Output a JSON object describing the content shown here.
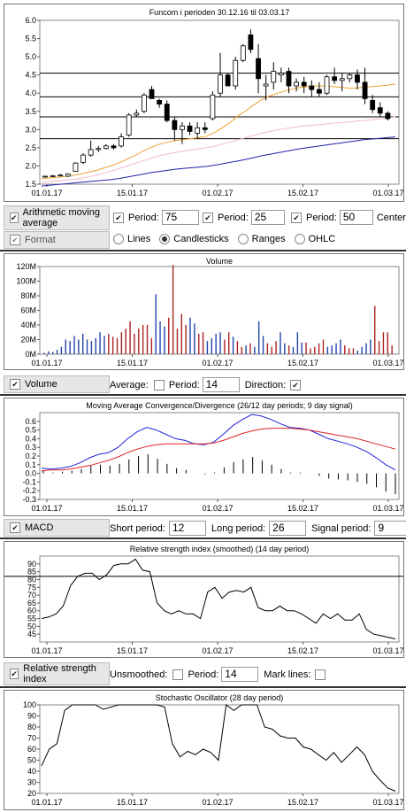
{
  "chart_data": [
    {
      "type": "candlestick",
      "title": "Funcom i perioden 30.12.16 til 03.03.17",
      "x_ticks": [
        "01.01.17",
        "15.01.17",
        "01.02.17",
        "15.02.17",
        "01.03.17"
      ],
      "ylim": [
        1.5,
        6.0
      ],
      "y_ticks": [
        "1.5",
        "2.0",
        "2.5",
        "3.0",
        "3.5",
        "4.0",
        "4.5",
        "5.0",
        "5.5",
        "6.0"
      ],
      "candles": [
        [
          1.7,
          1.72,
          1.68,
          1.72
        ],
        [
          1.72,
          1.75,
          1.7,
          1.73
        ],
        [
          1.73,
          1.78,
          1.72,
          1.75
        ],
        [
          1.72,
          1.8,
          1.7,
          1.78
        ],
        [
          1.85,
          2.1,
          1.84,
          2.08
        ],
        [
          2.1,
          2.35,
          2.05,
          2.3
        ],
        [
          2.3,
          2.7,
          2.25,
          2.45
        ],
        [
          2.45,
          2.55,
          2.38,
          2.48
        ],
        [
          2.48,
          2.6,
          2.45,
          2.55
        ],
        [
          2.55,
          2.6,
          2.45,
          2.5
        ],
        [
          2.55,
          2.9,
          2.5,
          2.8
        ],
        [
          2.85,
          3.45,
          2.8,
          3.4
        ],
        [
          3.4,
          3.55,
          3.35,
          3.45
        ],
        [
          3.5,
          4.0,
          3.45,
          3.95
        ],
        [
          4.1,
          4.2,
          3.85,
          3.85
        ],
        [
          3.8,
          3.85,
          3.6,
          3.7
        ],
        [
          3.7,
          3.8,
          3.2,
          3.25
        ],
        [
          3.25,
          3.35,
          2.7,
          3.0
        ],
        [
          3.0,
          3.2,
          2.6,
          3.1
        ],
        [
          3.1,
          3.2,
          2.85,
          2.95
        ],
        [
          2.9,
          3.2,
          2.75,
          3.05
        ],
        [
          3.05,
          3.2,
          2.9,
          3.0
        ],
        [
          3.3,
          4.05,
          3.25,
          3.95
        ],
        [
          4.0,
          5.1,
          3.9,
          4.5
        ],
        [
          4.5,
          4.55,
          4.2,
          4.2
        ],
        [
          4.2,
          5.0,
          4.1,
          4.9
        ],
        [
          4.9,
          5.35,
          4.85,
          5.3
        ],
        [
          5.6,
          5.75,
          5.1,
          5.2
        ],
        [
          4.95,
          5.35,
          4.0,
          4.4
        ],
        [
          4.2,
          4.5,
          3.8,
          4.25
        ],
        [
          4.3,
          4.85,
          4.1,
          4.6
        ],
        [
          4.5,
          4.7,
          4.3,
          4.55
        ],
        [
          4.6,
          4.7,
          4.0,
          4.2
        ],
        [
          4.2,
          4.4,
          4.05,
          4.3
        ],
        [
          4.3,
          4.45,
          4.0,
          4.2
        ],
        [
          4.2,
          4.35,
          3.9,
          4.1
        ],
        [
          4.1,
          4.3,
          3.9,
          4.0
        ],
        [
          4.0,
          4.5,
          3.95,
          4.45
        ],
        [
          4.45,
          4.7,
          4.25,
          4.35
        ],
        [
          4.35,
          4.55,
          4.05,
          4.4
        ],
        [
          4.4,
          4.55,
          4.3,
          4.5
        ],
        [
          4.5,
          4.65,
          4.1,
          4.3
        ],
        [
          4.3,
          4.7,
          3.7,
          3.85
        ],
        [
          3.8,
          3.95,
          3.45,
          3.55
        ],
        [
          3.6,
          3.75,
          3.35,
          3.45
        ],
        [
          3.45,
          3.5,
          3.25,
          3.3
        ]
      ],
      "series": [
        {
          "color": "#2222aa",
          "values": [
            1.45,
            1.47,
            1.49,
            1.51,
            1.53,
            1.55,
            1.57,
            1.59,
            1.61,
            1.63,
            1.66,
            1.7,
            1.74,
            1.78,
            1.82,
            1.85,
            1.88,
            1.91,
            1.93,
            1.95,
            1.97,
            1.99,
            2.02,
            2.06,
            2.1,
            2.14,
            2.18,
            2.23,
            2.28,
            2.32,
            2.36,
            2.4,
            2.44,
            2.48,
            2.51,
            2.54,
            2.57,
            2.6,
            2.63,
            2.66,
            2.69,
            2.72,
            2.74,
            2.76,
            2.78,
            2.8
          ]
        },
        {
          "color": "#f0a030",
          "values": [
            1.65,
            1.67,
            1.69,
            1.71,
            1.74,
            1.78,
            1.83,
            1.88,
            1.95,
            2.02,
            2.1,
            2.2,
            2.3,
            2.42,
            2.52,
            2.6,
            2.65,
            2.7,
            2.72,
            2.75,
            2.78,
            2.82,
            2.92,
            3.05,
            3.2,
            3.38,
            3.52,
            3.68,
            3.82,
            3.92,
            4.0,
            4.06,
            4.12,
            4.16,
            4.18,
            4.2,
            4.2,
            4.18,
            4.16,
            4.14,
            4.14,
            4.16,
            4.18,
            4.2,
            4.22,
            4.25
          ]
        },
        {
          "color": "#f4b8d0",
          "values": [
            1.55,
            1.57,
            1.59,
            1.61,
            1.63,
            1.66,
            1.7,
            1.75,
            1.81,
            1.87,
            1.94,
            2.01,
            2.08,
            2.15,
            2.22,
            2.28,
            2.33,
            2.37,
            2.41,
            2.44,
            2.47,
            2.5,
            2.54,
            2.6,
            2.66,
            2.72,
            2.78,
            2.84,
            2.9,
            2.95,
            2.99,
            3.03,
            3.06,
            3.09,
            3.11,
            3.13,
            3.15,
            3.17,
            3.19,
            3.21,
            3.23,
            3.25,
            3.27,
            3.29,
            3.32,
            3.35
          ]
        }
      ],
      "hlines": [
        4.55,
        3.9,
        3.35,
        2.75
      ]
    },
    {
      "type": "bar",
      "title": "Volume",
      "x_ticks": [
        "01.01.17",
        "15.01.17",
        "01.02.17",
        "15.02.17",
        "01.03.17"
      ],
      "ylim": [
        0,
        120
      ],
      "y_ticks": [
        "0M",
        "20M",
        "40M",
        "60M",
        "80M",
        "100M",
        "120M"
      ],
      "values": [
        2,
        4,
        3,
        6,
        10,
        20,
        18,
        25,
        20,
        28,
        20,
        18,
        22,
        30,
        25,
        28,
        24,
        22,
        30,
        35,
        45,
        28,
        35,
        40,
        40,
        22,
        82,
        45,
        38,
        50,
        122,
        35,
        55,
        40,
        50,
        42,
        28,
        30,
        18,
        22,
        28,
        30,
        20,
        30,
        24,
        18,
        10,
        12,
        15,
        10,
        45,
        25,
        15,
        10,
        18,
        30,
        15,
        12,
        10,
        30,
        16,
        16,
        8,
        10,
        15,
        20,
        10,
        12,
        15,
        20,
        12,
        8,
        8,
        5,
        10,
        15,
        20,
        66,
        18,
        30,
        30,
        12
      ],
      "colors": [
        "#2244aa",
        "#aa2222"
      ],
      "pattern": "bbbbbbbbbbbbbbbrrrrrrrrrrrbbbrrrrrbbrrbbbbrrbrrbrbbbrrrbbrbbbrrrrrbbbbrrrbbbbrrrrr"
    },
    {
      "type": "line",
      "title": "Moving Average Convergence/Divergence (26/12 day periods; 9 day signal)",
      "x_ticks": [
        "01.01.17",
        "15.01.17",
        "01.02.17",
        "15.02.17",
        "01.03.17"
      ],
      "ylim": [
        -0.3,
        0.7
      ],
      "y_ticks": [
        "-0.3",
        "-0.2",
        "-0.1",
        "0.0",
        "0.1",
        "0.2",
        "0.3",
        "0.4",
        "0.5",
        "0.6"
      ],
      "series": [
        {
          "color": "#2222dd",
          "values": [
            0.06,
            0.05,
            0.06,
            0.08,
            0.12,
            0.18,
            0.22,
            0.24,
            0.3,
            0.4,
            0.48,
            0.53,
            0.5,
            0.45,
            0.4,
            0.38,
            0.34,
            0.33,
            0.36,
            0.45,
            0.55,
            0.62,
            0.68,
            0.66,
            0.62,
            0.57,
            0.53,
            0.52,
            0.5,
            0.45,
            0.4,
            0.37,
            0.34,
            0.3,
            0.25,
            0.18,
            0.1,
            0.04
          ]
        },
        {
          "color": "#dd2222",
          "values": [
            0.03,
            0.04,
            0.04,
            0.05,
            0.07,
            0.09,
            0.12,
            0.15,
            0.19,
            0.24,
            0.28,
            0.31,
            0.33,
            0.34,
            0.34,
            0.34,
            0.34,
            0.34,
            0.35,
            0.38,
            0.42,
            0.46,
            0.49,
            0.51,
            0.52,
            0.52,
            0.52,
            0.51,
            0.5,
            0.48,
            0.46,
            0.44,
            0.42,
            0.4,
            0.37,
            0.34,
            0.31,
            0.28
          ]
        }
      ],
      "histogram": [
        0.03,
        0.01,
        0.02,
        0.03,
        0.05,
        0.09,
        0.1,
        0.09,
        0.11,
        0.16,
        0.2,
        0.22,
        0.17,
        0.11,
        0.06,
        0.04,
        0.0,
        -0.01,
        0.01,
        0.07,
        0.13,
        0.16,
        0.19,
        0.15,
        0.1,
        0.05,
        0.01,
        0.01,
        0.0,
        -0.03,
        -0.06,
        -0.07,
        -0.08,
        -0.1,
        -0.12,
        -0.16,
        -0.21,
        -0.24
      ]
    },
    {
      "type": "line",
      "title": "Relative strength index (smoothed) (14 day period)",
      "x_ticks": [
        "01.01.17",
        "15.01.17",
        "01.02.17",
        "15.02.17",
        "01.03.17"
      ],
      "ylim": [
        40,
        95
      ],
      "y_ticks": [
        "45",
        "50",
        "55",
        "60",
        "65",
        "70",
        "75",
        "80",
        "85",
        "90"
      ],
      "values": [
        55,
        56,
        58,
        63,
        76,
        82,
        84,
        84,
        80,
        83,
        89,
        90,
        90,
        93,
        86,
        85,
        65,
        60,
        58,
        60,
        58,
        58,
        55,
        72,
        75,
        68,
        72,
        73,
        72,
        75,
        62,
        60,
        60,
        63,
        60,
        60,
        58,
        55,
        52,
        58,
        55,
        58,
        54,
        54,
        58,
        48,
        45,
        44,
        43,
        42
      ],
      "hlines": [
        82
      ]
    },
    {
      "type": "line",
      "title": "Stochastic Oscillator (28 day period)",
      "x_ticks": [
        "01.01.17",
        "15.01.17",
        "01.02.17",
        "15.02.17",
        "01.03.17"
      ],
      "ylim": [
        20,
        100
      ],
      "y_ticks": [
        "20",
        "30",
        "40",
        "50",
        "60",
        "70",
        "80",
        "90",
        "100"
      ],
      "values": [
        45,
        60,
        65,
        95,
        100,
        100,
        100,
        100,
        96,
        98,
        100,
        100,
        100,
        100,
        100,
        100,
        98,
        65,
        53,
        58,
        55,
        60,
        57,
        50,
        100,
        95,
        100,
        100,
        100,
        80,
        78,
        72,
        70,
        70,
        62,
        60,
        55,
        50,
        57,
        48,
        55,
        62,
        55,
        40,
        32,
        25,
        22
      ]
    }
  ],
  "controls": {
    "ma": {
      "label": "Arithmetic moving average",
      "period_label": "Period:",
      "p1": "75",
      "p2": "25",
      "p3": "50",
      "centered": "Centered"
    },
    "format": {
      "label": "Format",
      "lines": "Lines",
      "candles": "Candlesticks",
      "ranges": "Ranges",
      "ohlc": "OHLC"
    },
    "volume": {
      "label": "Volume",
      "average": "Average:",
      "period_label": "Period:",
      "period": "14",
      "direction": "Direction:"
    },
    "macd": {
      "label": "MACD",
      "short": "Short period:",
      "short_v": "12",
      "long": "Long period:",
      "long_v": "26",
      "signal": "Signal period:",
      "signal_v": "9"
    },
    "rsi": {
      "label": "Relative strength index",
      "unsmoothed": "Unsmoothed:",
      "period_label": "Period:",
      "period": "14",
      "mark": "Mark lines:"
    }
  }
}
